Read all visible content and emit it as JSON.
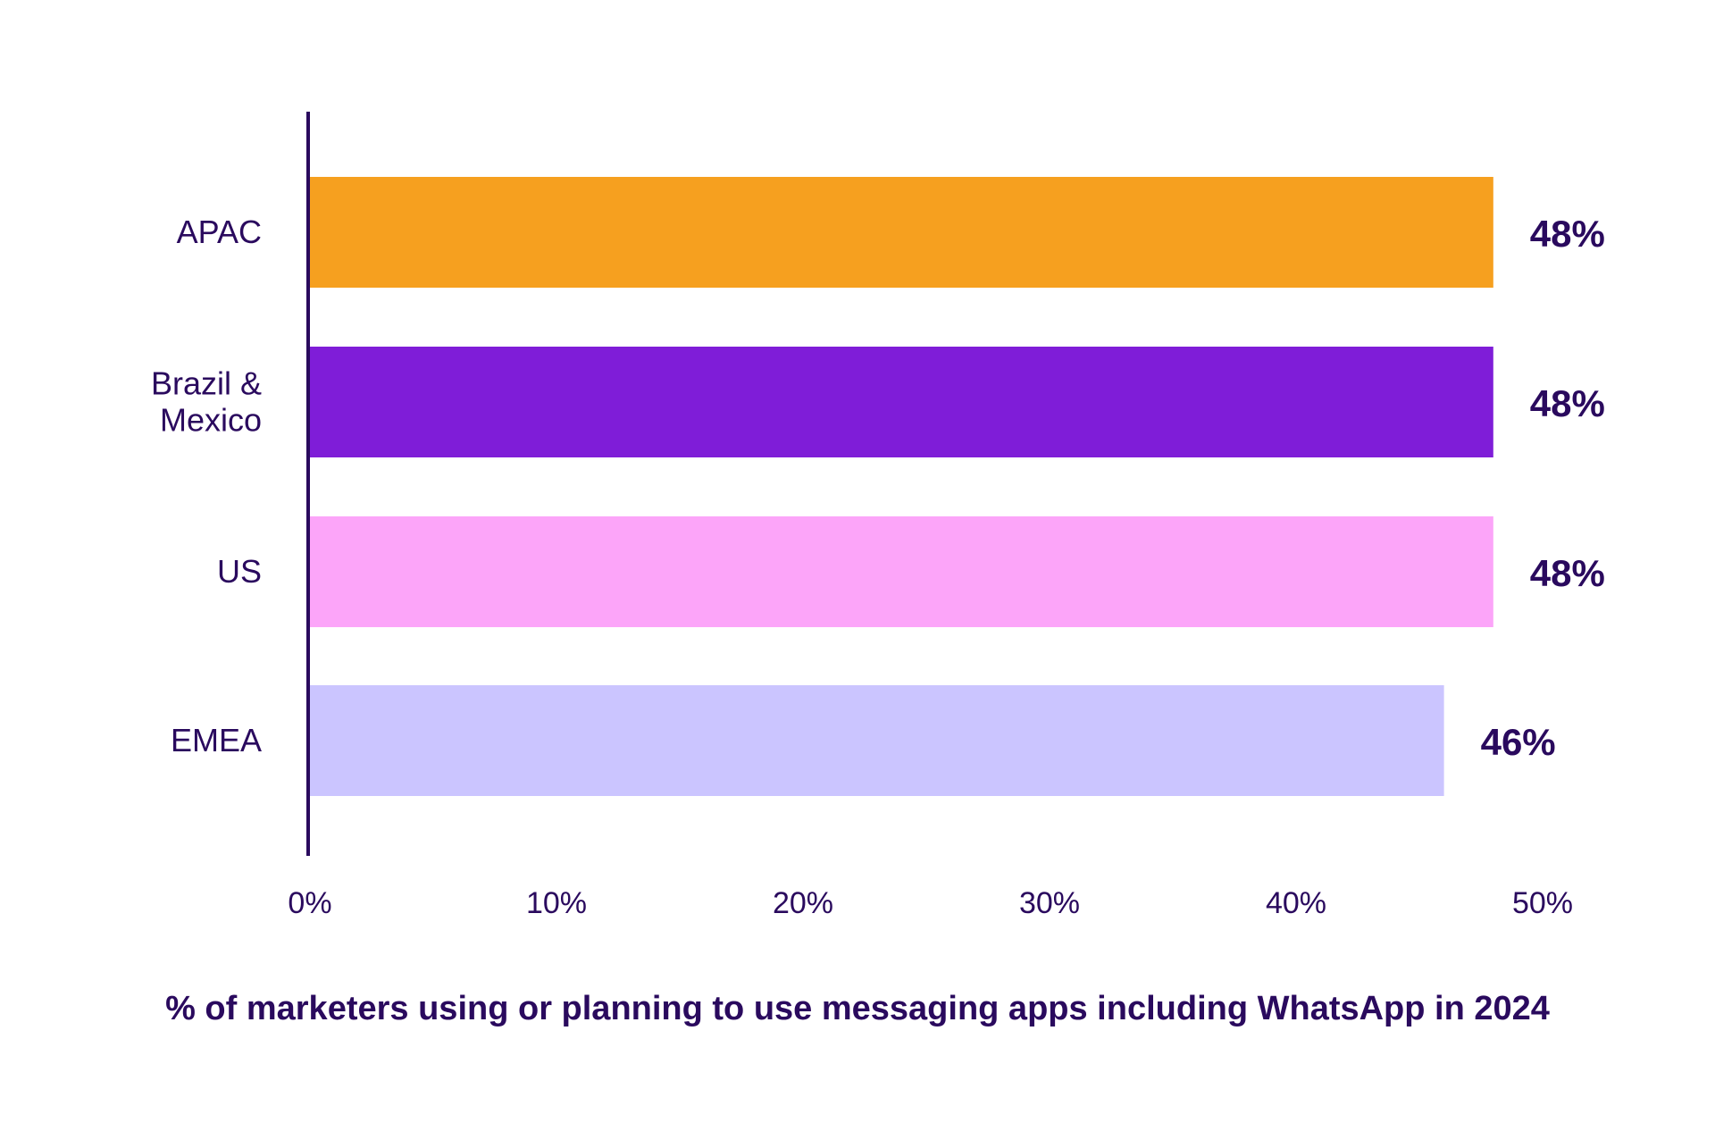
{
  "chart_data": {
    "type": "bar",
    "orientation": "horizontal",
    "categories": [
      [
        "APAC"
      ],
      [
        "Brazil &",
        "Mexico"
      ],
      [
        "US"
      ],
      [
        "EMEA"
      ]
    ],
    "values": [
      48,
      48,
      48,
      46
    ],
    "value_labels": [
      "48%",
      "48%",
      "48%",
      "46%"
    ],
    "bar_colors": [
      "#f6a01f",
      "#7f1dd8",
      "#fca5f9",
      "#cbc5ff"
    ],
    "x_ticks": [
      0,
      10,
      20,
      30,
      40,
      50
    ],
    "x_tick_labels": [
      "0%",
      "10%",
      "20%",
      "30%",
      "40%",
      "50%"
    ],
    "xlim": [
      0,
      50
    ],
    "title": "% of marketers using or planning to use messaging apps including WhatsApp in 2024",
    "xlabel": "",
    "ylabel": "",
    "grid": false,
    "legend": "none",
    "text_color": "#2a0a5e"
  }
}
